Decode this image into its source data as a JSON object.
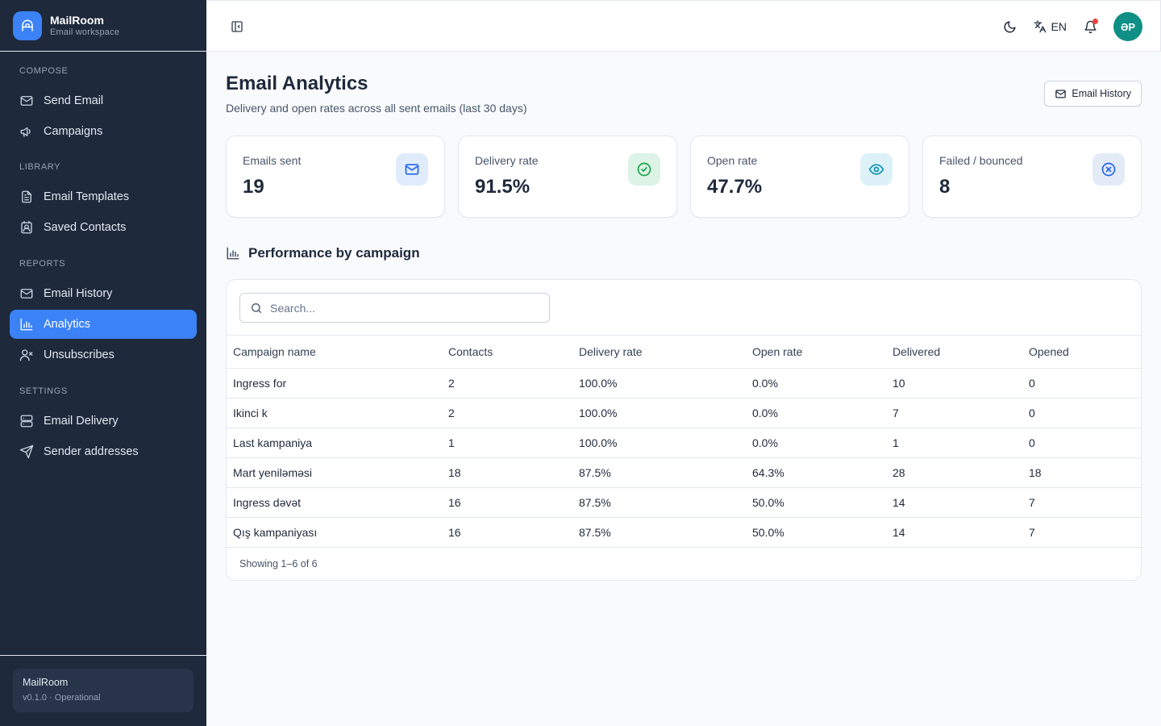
{
  "brand": {
    "name": "MailRoom",
    "subtitle": "Email workspace"
  },
  "sidebar": {
    "sections": [
      {
        "title": "COMPOSE",
        "items": [
          {
            "label": "Send Email",
            "icon": "mail-icon"
          },
          {
            "label": "Campaigns",
            "icon": "megaphone-icon"
          }
        ]
      },
      {
        "title": "LIBRARY",
        "items": [
          {
            "label": "Email Templates",
            "icon": "file-text-icon"
          },
          {
            "label": "Saved Contacts",
            "icon": "contact-icon"
          }
        ]
      },
      {
        "title": "REPORTS",
        "items": [
          {
            "label": "Email History",
            "icon": "mail-icon"
          },
          {
            "label": "Analytics",
            "icon": "bar-chart-icon",
            "active": true
          },
          {
            "label": "Unsubscribes",
            "icon": "user-x-icon"
          }
        ]
      },
      {
        "title": "SETTINGS",
        "items": [
          {
            "label": "Email Delivery",
            "icon": "server-icon"
          },
          {
            "label": "Sender addresses",
            "icon": "send-icon"
          }
        ]
      }
    ],
    "footer": {
      "name": "MailRoom",
      "version": "v0.1.0 · Operational"
    }
  },
  "header": {
    "language": "EN",
    "avatar_initials": "ƏP"
  },
  "page": {
    "title": "Email Analytics",
    "subtitle": "Delivery and open rates across all sent emails (last 30 days)",
    "history_button": "Email History"
  },
  "stats": [
    {
      "label": "Emails sent",
      "value": "19",
      "icon": "mail-icon",
      "color": "#2563eb",
      "bg": "#e0ecfb"
    },
    {
      "label": "Delivery rate",
      "value": "91.5%",
      "icon": "check-circle-icon",
      "color": "#16a34a",
      "bg": "#dcf3e5"
    },
    {
      "label": "Open rate",
      "value": "47.7%",
      "icon": "eye-icon",
      "color": "#0891b2",
      "bg": "#dcf2f8"
    },
    {
      "label": "Failed / bounced",
      "value": "8",
      "icon": "x-circle-icon",
      "color": "#2563eb",
      "bg": "#e3ebf7"
    }
  ],
  "performance": {
    "title": "Performance by campaign",
    "search_placeholder": "Search...",
    "columns": [
      "Campaign name",
      "Contacts",
      "Delivery rate",
      "Open rate",
      "Delivered",
      "Opened"
    ],
    "rows": [
      [
        "Ingress for",
        "2",
        "100.0%",
        "0.0%",
        "10",
        "0"
      ],
      [
        "Ikinci k",
        "2",
        "100.0%",
        "0.0%",
        "7",
        "0"
      ],
      [
        "Last kampaniya",
        "1",
        "100.0%",
        "0.0%",
        "1",
        "0"
      ],
      [
        "Mart yeniləməsi",
        "18",
        "87.5%",
        "64.3%",
        "28",
        "18"
      ],
      [
        "Ingress dəvət",
        "16",
        "87.5%",
        "50.0%",
        "14",
        "7"
      ],
      [
        "Qış kampaniyası",
        "16",
        "87.5%",
        "50.0%",
        "14",
        "7"
      ]
    ],
    "footer": "Showing 1–6 of 6"
  }
}
